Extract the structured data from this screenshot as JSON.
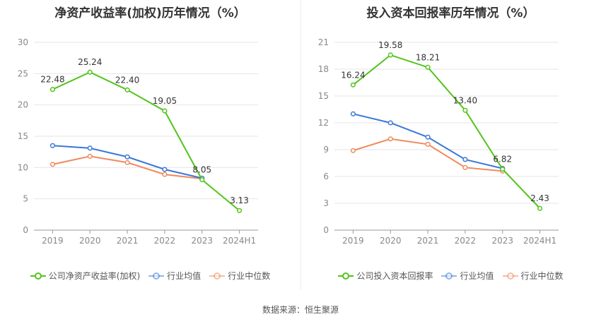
{
  "chart_data": [
    {
      "type": "line",
      "title": "净资产收益率(加权)历年情况（%）",
      "categories": [
        "2019",
        "2020",
        "2021",
        "2022",
        "2023",
        "2024H1"
      ],
      "ylim": [
        0,
        30
      ],
      "yticks": [
        0,
        5,
        10,
        15,
        20,
        25,
        30
      ],
      "grid": true,
      "legend_position": "bottom",
      "series": [
        {
          "name": "公司净资产收益率(加权)",
          "color": "#52c41a",
          "values": [
            22.48,
            25.24,
            22.4,
            19.05,
            8.05,
            3.13
          ],
          "labels": [
            "22.48",
            "25.24",
            "22.40",
            "19.05",
            "8.05",
            "3.13"
          ]
        },
        {
          "name": "行业均值",
          "color": "#3a78d8",
          "values": [
            13.5,
            13.1,
            11.7,
            9.7,
            8.3,
            null
          ]
        },
        {
          "name": "行业中位数",
          "color": "#f08a5d",
          "values": [
            10.5,
            11.8,
            10.8,
            8.9,
            8.2,
            null
          ]
        }
      ]
    },
    {
      "type": "line",
      "title": "投入资本回报率历年情况（%）",
      "categories": [
        "2019",
        "2020",
        "2021",
        "2022",
        "2023",
        "2024H1"
      ],
      "ylim": [
        0,
        21
      ],
      "yticks": [
        0,
        3,
        6,
        9,
        12,
        15,
        18,
        21
      ],
      "grid": true,
      "legend_position": "bottom",
      "series": [
        {
          "name": "公司投入资本回报率",
          "color": "#52c41a",
          "values": [
            16.24,
            19.58,
            18.21,
            13.4,
            6.82,
            2.43
          ],
          "labels": [
            "16.24",
            "19.58",
            "18.21",
            "13.40",
            "6.82",
            "2.43"
          ]
        },
        {
          "name": "行业均值",
          "color": "#3a78d8",
          "values": [
            13.0,
            12.0,
            10.4,
            7.9,
            6.9,
            null
          ]
        },
        {
          "name": "行业中位数",
          "color": "#f08a5d",
          "values": [
            8.9,
            10.2,
            9.6,
            7.0,
            6.6,
            null
          ]
        }
      ]
    }
  ],
  "source": "数据来源：恒生聚源"
}
